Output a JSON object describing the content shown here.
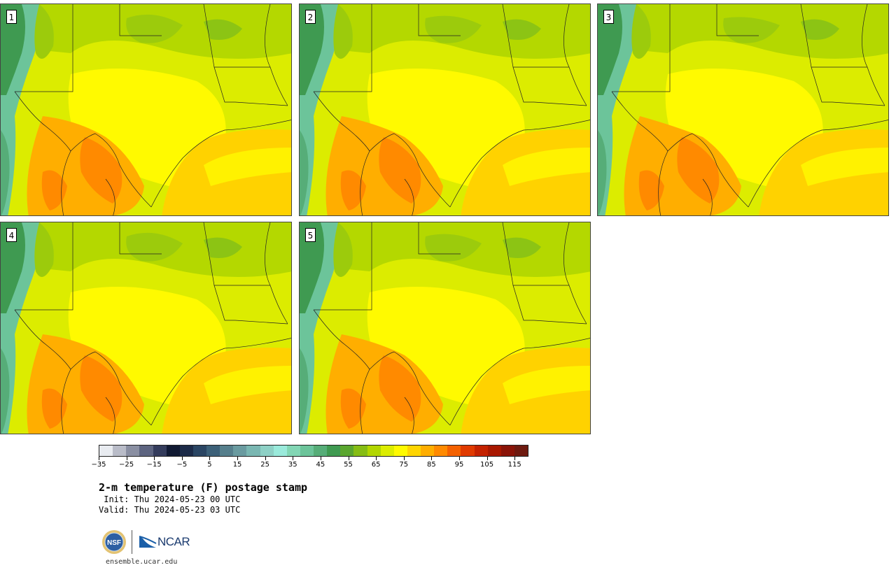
{
  "panels": [
    "1",
    "2",
    "3",
    "4",
    "5"
  ],
  "colorbar": {
    "colors": [
      "#e8ebf0",
      "#b9bcc8",
      "#8a8fa2",
      "#5d6480",
      "#343c5c",
      "#111a33",
      "#1c2b48",
      "#2a4563",
      "#3c6078",
      "#567f8c",
      "#6a9ba0",
      "#7ab7b2",
      "#8ed1c6",
      "#9aeadb",
      "#82d6b4",
      "#6cc49a",
      "#56ad78",
      "#3f9a51",
      "#5aa62e",
      "#86bd14",
      "#b2d600",
      "#dced00",
      "#fffa00",
      "#ffd500",
      "#ffae00",
      "#ff8a00",
      "#f46100",
      "#e03a00",
      "#c42200",
      "#a81800",
      "#8a1408",
      "#6e1a10"
    ],
    "ticks": [
      "-35",
      "-25",
      "-15",
      "-5",
      "5",
      "15",
      "25",
      "35",
      "45",
      "55",
      "65",
      "75",
      "85",
      "95",
      "105",
      "115"
    ],
    "min": -35,
    "max": 120
  },
  "title": "2-m temperature (F) postage stamp",
  "init": " Init: Thu 2024-05-23 00 UTC",
  "valid": "Valid: Thu 2024-05-23 03 UTC",
  "logos": {
    "nsf": "NSF",
    "ncar": "NCAR"
  },
  "site": "ensemble.ucar.edu"
}
